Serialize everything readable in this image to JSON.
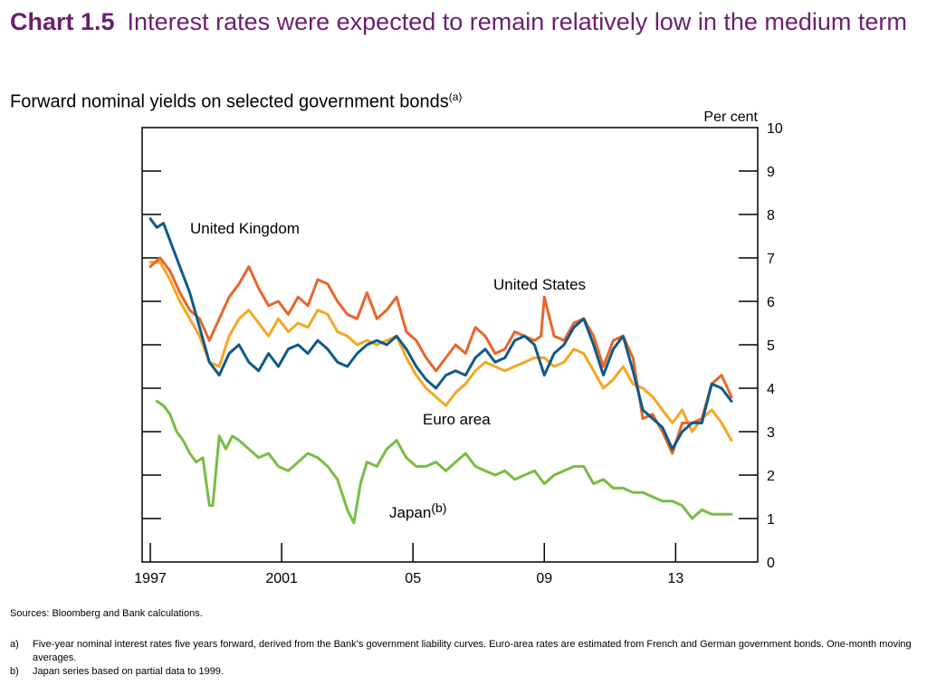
{
  "header": {
    "chart_number": "Chart 1.5",
    "title": "Interest rates were expected to remain relatively low in the medium term",
    "subtitle": "Forward nominal yields on selected government bonds",
    "subtitle_note": "(a)"
  },
  "chart_data": {
    "type": "line",
    "title": "Forward nominal yields on selected government bonds",
    "ylabel": "Per cent",
    "xlabel": "",
    "xlim": [
      1996.75,
      2015.5
    ],
    "ylim": [
      0,
      10
    ],
    "yticks": [
      0,
      1,
      2,
      3,
      4,
      5,
      6,
      7,
      8,
      9,
      10
    ],
    "xticks": [
      {
        "value": 1997,
        "label": "1997"
      },
      {
        "value": 2001,
        "label": "2001"
      },
      {
        "value": 2005,
        "label": "05"
      },
      {
        "value": 2009,
        "label": "09"
      },
      {
        "value": 2013,
        "label": "13"
      }
    ],
    "grid": false,
    "legend": "inline labels",
    "series": [
      {
        "name": "United States",
        "label_text": "United States",
        "color": "#e8652a",
        "x": [
          1997.0,
          1997.3,
          1997.6,
          1997.9,
          1998.2,
          1998.5,
          1998.8,
          1999.1,
          1999.4,
          1999.7,
          2000.0,
          2000.3,
          2000.6,
          2000.9,
          2001.2,
          2001.5,
          2001.8,
          2002.1,
          2002.4,
          2002.7,
          2003.0,
          2003.3,
          2003.6,
          2003.9,
          2004.2,
          2004.5,
          2004.8,
          2005.1,
          2005.4,
          2005.7,
          2006.0,
          2006.3,
          2006.6,
          2006.9,
          2007.2,
          2007.5,
          2007.8,
          2008.1,
          2008.4,
          2008.7,
          2008.9,
          2009.0,
          2009.3,
          2009.6,
          2009.9,
          2010.2,
          2010.5,
          2010.8,
          2011.1,
          2011.4,
          2011.7,
          2012.0,
          2012.3,
          2012.6,
          2012.9,
          2013.2,
          2013.5,
          2013.8,
          2014.1,
          2014.4,
          2014.7
        ],
        "values": [
          6.8,
          7.0,
          6.7,
          6.2,
          5.8,
          5.6,
          5.1,
          5.6,
          6.1,
          6.4,
          6.8,
          6.3,
          5.9,
          6.0,
          5.7,
          6.1,
          5.9,
          6.5,
          6.4,
          6.0,
          5.7,
          5.6,
          6.2,
          5.6,
          5.8,
          6.1,
          5.3,
          5.1,
          4.7,
          4.4,
          4.7,
          5.0,
          4.8,
          5.4,
          5.2,
          4.8,
          4.9,
          5.3,
          5.2,
          5.1,
          5.2,
          6.1,
          5.2,
          5.1,
          5.5,
          5.6,
          5.2,
          4.5,
          5.1,
          5.2,
          4.7,
          3.3,
          3.4,
          3.0,
          2.5,
          3.2,
          3.2,
          3.3,
          4.1,
          4.3,
          3.8
        ]
      },
      {
        "name": "United Kingdom",
        "label_text": "United Kingdom",
        "color": "#0e5a8a",
        "x": [
          1997.0,
          1997.2,
          1997.4,
          1997.6,
          1997.9,
          1998.2,
          1998.5,
          1998.8,
          1999.1,
          1999.4,
          1999.7,
          2000.0,
          2000.3,
          2000.6,
          2000.9,
          2001.2,
          2001.5,
          2001.8,
          2002.1,
          2002.4,
          2002.7,
          2003.0,
          2003.3,
          2003.6,
          2003.9,
          2004.2,
          2004.5,
          2004.8,
          2005.1,
          2005.4,
          2005.7,
          2006.0,
          2006.3,
          2006.6,
          2006.9,
          2007.2,
          2007.5,
          2007.8,
          2008.1,
          2008.4,
          2008.7,
          2009.0,
          2009.3,
          2009.6,
          2009.9,
          2010.2,
          2010.5,
          2010.8,
          2011.1,
          2011.4,
          2011.7,
          2012.0,
          2012.3,
          2012.6,
          2012.9,
          2013.2,
          2013.5,
          2013.8,
          2014.1,
          2014.4,
          2014.7
        ],
        "values": [
          7.9,
          7.7,
          7.8,
          7.4,
          6.8,
          6.2,
          5.4,
          4.6,
          4.3,
          4.8,
          5.0,
          4.6,
          4.4,
          4.8,
          4.5,
          4.9,
          5.0,
          4.8,
          5.1,
          4.9,
          4.6,
          4.5,
          4.8,
          5.0,
          5.1,
          5.0,
          5.2,
          4.9,
          4.5,
          4.2,
          4.0,
          4.3,
          4.4,
          4.3,
          4.7,
          4.9,
          4.6,
          4.7,
          5.1,
          5.2,
          5.0,
          4.3,
          4.8,
          5.0,
          5.4,
          5.6,
          5.0,
          4.3,
          4.9,
          5.2,
          4.4,
          3.5,
          3.3,
          3.1,
          2.6,
          3.0,
          3.2,
          3.2,
          4.1,
          4.0,
          3.7
        ]
      },
      {
        "name": "Euro area",
        "label_text": "Euro area",
        "color": "#f5a623",
        "x": [
          1997.0,
          1997.3,
          1997.6,
          1997.9,
          1998.2,
          1998.5,
          1998.8,
          1999.1,
          1999.4,
          1999.7,
          2000.0,
          2000.3,
          2000.6,
          2000.9,
          2001.2,
          2001.5,
          2001.8,
          2002.1,
          2002.4,
          2002.7,
          2003.0,
          2003.3,
          2003.6,
          2003.9,
          2004.2,
          2004.5,
          2004.8,
          2005.1,
          2005.4,
          2005.7,
          2006.0,
          2006.3,
          2006.6,
          2006.9,
          2007.2,
          2007.5,
          2007.8,
          2008.1,
          2008.4,
          2008.7,
          2009.0,
          2009.3,
          2009.6,
          2009.9,
          2010.2,
          2010.5,
          2010.8,
          2011.1,
          2011.4,
          2011.7,
          2012.0,
          2012.3,
          2012.6,
          2012.9,
          2013.2,
          2013.5,
          2013.8,
          2014.1,
          2014.4,
          2014.7
        ],
        "values": [
          6.9,
          6.9,
          6.5,
          6.0,
          5.6,
          5.2,
          4.6,
          4.5,
          5.2,
          5.6,
          5.8,
          5.5,
          5.2,
          5.6,
          5.3,
          5.5,
          5.4,
          5.8,
          5.7,
          5.3,
          5.2,
          5.0,
          5.1,
          5.0,
          5.1,
          5.2,
          4.7,
          4.3,
          4.0,
          3.8,
          3.6,
          3.9,
          4.1,
          4.4,
          4.6,
          4.5,
          4.4,
          4.5,
          4.6,
          4.7,
          4.7,
          4.5,
          4.6,
          4.9,
          4.8,
          4.4,
          4.0,
          4.2,
          4.5,
          4.1,
          4.0,
          3.8,
          3.5,
          3.2,
          3.5,
          3.0,
          3.3,
          3.5,
          3.2,
          2.8
        ]
      },
      {
        "name": "Japan",
        "label_text": "Japan",
        "label_note": "(b)",
        "color": "#77bd43",
        "x": [
          1997.2,
          1997.4,
          1997.6,
          1997.8,
          1998.0,
          1998.2,
          1998.4,
          1998.6,
          1998.8,
          1998.9,
          1999.1,
          1999.3,
          1999.5,
          1999.7,
          2000.0,
          2000.3,
          2000.6,
          2000.9,
          2001.2,
          2001.5,
          2001.8,
          2002.1,
          2002.4,
          2002.7,
          2003.0,
          2003.2,
          2003.4,
          2003.6,
          2003.9,
          2004.2,
          2004.5,
          2004.8,
          2005.1,
          2005.4,
          2005.7,
          2006.0,
          2006.3,
          2006.6,
          2006.9,
          2007.2,
          2007.5,
          2007.8,
          2008.1,
          2008.4,
          2008.7,
          2009.0,
          2009.3,
          2009.6,
          2009.9,
          2010.2,
          2010.5,
          2010.8,
          2011.1,
          2011.4,
          2011.7,
          2012.0,
          2012.3,
          2012.6,
          2012.9,
          2013.2,
          2013.5,
          2013.8,
          2014.1,
          2014.4,
          2014.7
        ],
        "values": [
          3.7,
          3.6,
          3.4,
          3.0,
          2.8,
          2.5,
          2.3,
          2.4,
          1.3,
          1.3,
          2.9,
          2.6,
          2.9,
          2.8,
          2.6,
          2.4,
          2.5,
          2.2,
          2.1,
          2.3,
          2.5,
          2.4,
          2.2,
          1.9,
          1.2,
          0.9,
          1.8,
          2.3,
          2.2,
          2.6,
          2.8,
          2.4,
          2.2,
          2.2,
          2.3,
          2.1,
          2.3,
          2.5,
          2.2,
          2.1,
          2.0,
          2.1,
          1.9,
          2.0,
          2.1,
          1.8,
          2.0,
          2.1,
          2.2,
          2.2,
          1.8,
          1.9,
          1.7,
          1.7,
          1.6,
          1.6,
          1.5,
          1.4,
          1.4,
          1.3,
          1.0,
          1.2,
          1.1,
          1.1,
          1.1
        ]
      }
    ]
  },
  "notes": {
    "sources": "Sources:  Bloomberg and Bank calculations.",
    "footnotes": [
      {
        "key": "a)",
        "text": "Five-year nominal interest rates five years forward, derived from the Bank’s government liability curves.  Euro-area rates are estimated from French and German government bonds.  One-month moving averages."
      },
      {
        "key": "b)",
        "text": "Japan series based on partial data to 1999."
      }
    ]
  }
}
